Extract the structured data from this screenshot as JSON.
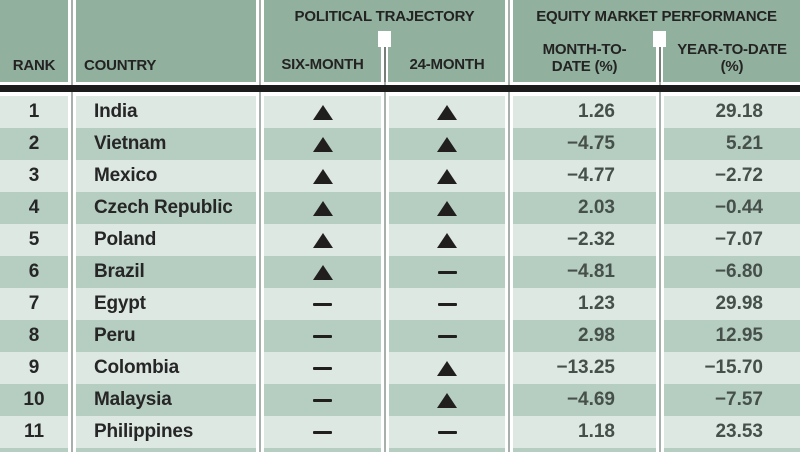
{
  "header": {
    "rank": "RANK",
    "country": "COUNTRY",
    "political_group": "POLITICAL TRAJECTORY",
    "equity_group": "EQUITY MARKET PERFORMANCE",
    "six_month": "SIX-MONTH",
    "twenty_four_month": "24-MONTH",
    "mtd_line1": "MONTH-TO-",
    "mtd_line2": "DATE (%)",
    "ytd_line1": "YEAR-TO-DATE",
    "ytd_line2": "(%)"
  },
  "icons": {
    "up": "triangle-up-icon",
    "flat": "dash-icon"
  },
  "chart_data": {
    "type": "table",
    "columns": [
      "RANK",
      "COUNTRY",
      "SIX-MONTH",
      "24-MONTH",
      "MONTH-TO-DATE (%)",
      "YEAR-TO-DATE (%)"
    ],
    "rows": [
      {
        "rank": "1",
        "country": "India",
        "six_month": "up",
        "twenty_four_month": "up",
        "mtd": "1.26",
        "ytd": "29.18"
      },
      {
        "rank": "2",
        "country": "Vietnam",
        "six_month": "up",
        "twenty_four_month": "up",
        "mtd": "−4.75",
        "ytd": "5.21"
      },
      {
        "rank": "3",
        "country": "Mexico",
        "six_month": "up",
        "twenty_four_month": "up",
        "mtd": "−4.77",
        "ytd": "−2.72"
      },
      {
        "rank": "4",
        "country": "Czech Republic",
        "six_month": "up",
        "twenty_four_month": "up",
        "mtd": "2.03",
        "ytd": "−0.44"
      },
      {
        "rank": "5",
        "country": "Poland",
        "six_month": "up",
        "twenty_four_month": "up",
        "mtd": "−2.32",
        "ytd": "−7.07"
      },
      {
        "rank": "6",
        "country": "Brazil",
        "six_month": "up",
        "twenty_four_month": "flat",
        "mtd": "−4.81",
        "ytd": "−6.80"
      },
      {
        "rank": "7",
        "country": "Egypt",
        "six_month": "flat",
        "twenty_four_month": "flat",
        "mtd": "1.23",
        "ytd": "29.98"
      },
      {
        "rank": "8",
        "country": "Peru",
        "six_month": "flat",
        "twenty_four_month": "flat",
        "mtd": "2.98",
        "ytd": "12.95"
      },
      {
        "rank": "9",
        "country": "Colombia",
        "six_month": "flat",
        "twenty_four_month": "up",
        "mtd": "−13.25",
        "ytd": "−15.70"
      },
      {
        "rank": "10",
        "country": "Malaysia",
        "six_month": "flat",
        "twenty_four_month": "up",
        "mtd": "−4.69",
        "ytd": "−7.57"
      },
      {
        "rank": "11",
        "country": "Philippines",
        "six_month": "flat",
        "twenty_four_month": "flat",
        "mtd": "1.18",
        "ytd": "23.53"
      }
    ]
  },
  "colors": {
    "header_green": "#92b09e",
    "row_light": "#dde8e2",
    "row_dark": "#b6cec2",
    "divider_black": "#1b1b1b",
    "gutter_line": "#a8b0ab",
    "divider_core": "#777d78",
    "header_text": "#232323",
    "text_dark": "#262626",
    "value_text": "#46504a",
    "icon_dark": "#201f1d"
  }
}
